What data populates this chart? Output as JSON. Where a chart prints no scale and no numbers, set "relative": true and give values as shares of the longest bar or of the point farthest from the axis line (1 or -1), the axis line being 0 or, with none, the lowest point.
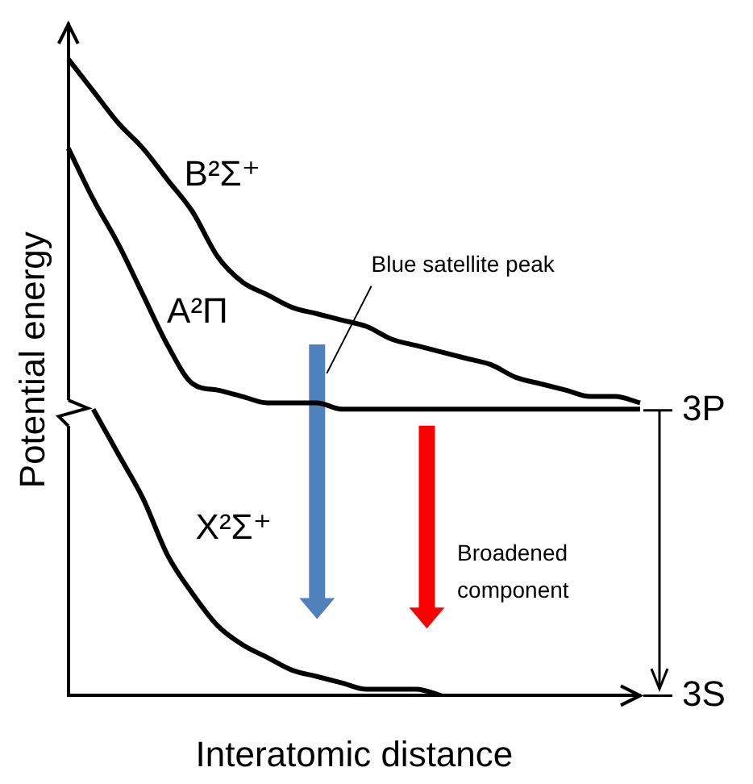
{
  "chart_data": {
    "type": "line",
    "relative": true,
    "xlabel": "Interatomic distance",
    "ylabel": "Potential energy",
    "legend": false,
    "grid": false,
    "marker": "none",
    "line_style": "solid",
    "categories": [
      null,
      null,
      null,
      null,
      null,
      null,
      null,
      null,
      null,
      null,
      null,
      null,
      null,
      null,
      null,
      null,
      null,
      null,
      null,
      null,
      null,
      null,
      null,
      null
    ],
    "series": [
      {
        "name": "B²Σ⁺",
        "color": "#000000",
        "values": [
          1.0,
          0.95,
          0.9,
          0.86,
          0.81,
          0.76,
          0.69,
          0.65,
          0.63,
          0.61,
          0.6,
          0.59,
          0.58,
          0.56,
          0.55,
          0.54,
          0.53,
          0.52,
          0.5,
          0.49,
          0.48,
          0.47,
          0.47,
          0.46
        ]
      },
      {
        "name": "A²Π",
        "color": "#000000",
        "values": [
          0.86,
          0.78,
          0.71,
          0.63,
          0.55,
          0.49,
          0.48,
          0.47,
          0.46,
          0.46,
          0.46,
          0.45,
          0.45,
          0.45,
          0.45,
          0.45,
          0.45,
          0.45,
          0.45,
          0.45,
          0.45,
          0.45,
          0.45,
          0.45
        ]
      },
      {
        "name": "X²Σ⁺",
        "color": "#000000",
        "values": [
          null,
          0.45,
          0.38,
          0.31,
          0.22,
          0.16,
          0.11,
          0.08,
          0.06,
          0.04,
          0.03,
          0.02,
          0.01,
          0.01,
          0.01,
          0.0,
          null,
          null,
          null,
          null,
          null,
          null,
          null,
          null
        ]
      }
    ],
    "annotations": [
      {
        "text": "Blue satellite peak"
      },
      {
        "text": "Broadened component"
      },
      "3P",
      "3S"
    ]
  }
}
